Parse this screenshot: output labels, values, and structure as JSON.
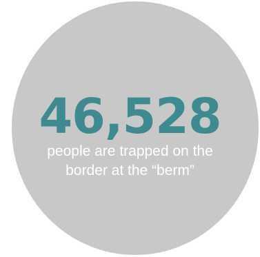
{
  "stat": {
    "value": "46,528",
    "caption_line1": "people are trapped on the",
    "caption_line2": "border at the “berm”"
  },
  "colors": {
    "circle": "#c8c8c8",
    "number": "#3d8a90",
    "caption": "#ffffff"
  }
}
